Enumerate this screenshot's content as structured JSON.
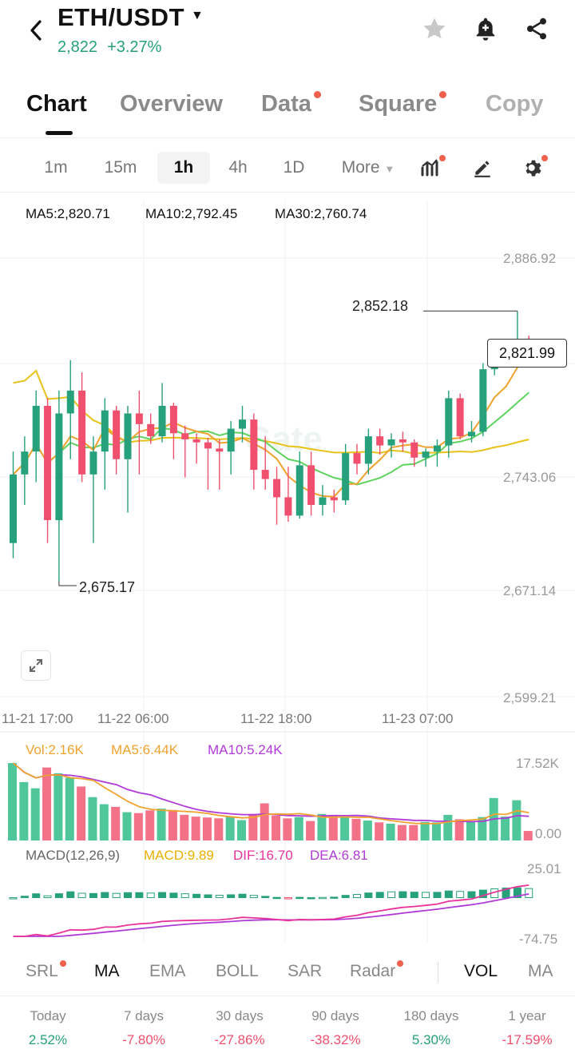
{
  "header": {
    "pair": "ETH/USDT",
    "price": "2,822",
    "change": "+3.27%",
    "up_color": "#26a17b",
    "down_color": "#f0506e",
    "icons": [
      "back-arrow-icon",
      "star-icon",
      "bell-icon",
      "share-icon"
    ]
  },
  "tabs": [
    "Chart",
    "Overview",
    "Data",
    "Square",
    "Copy"
  ],
  "active_tab": "Chart",
  "timeframes": [
    "1m",
    "15m",
    "1h",
    "4h",
    "1D",
    "More"
  ],
  "active_timeframe": "1h",
  "toolbar_icons": [
    "indicator-icon",
    "draw-pen-icon",
    "settings-gear-icon"
  ],
  "ma": {
    "ma5": "MA5:2,820.71",
    "ma10": "MA10:2,792.45",
    "ma30": "MA30:2,760.74",
    "ma5_color": "#f0a22e",
    "ma10_color": "#5fd35f",
    "ma30_color": "#e8c21a"
  },
  "price_axis": [
    "2,886.92",
    "2,743.06",
    "2,671.14",
    "2,599.21"
  ],
  "high_label": "2,852.18",
  "low_label": "2,675.17",
  "current_price": "2,821.99",
  "time_axis": [
    "11-21 17:00",
    "11-22 06:00",
    "11-22 18:00",
    "11-23 07:00"
  ],
  "watermark": "Gate",
  "volume": {
    "vol": "Vol:2.16K",
    "ma5": "MA5:6.44K",
    "ma10": "MA10:5.24K",
    "axis_top": "17.52K",
    "axis_bottom": "0.00"
  },
  "macd": {
    "title": "MACD(12,26,9)",
    "macd": "MACD:9.89",
    "dif": "DIF:16.70",
    "dea": "DEA:6.81",
    "axis_top": "25.01",
    "axis_bottom": "-74.75"
  },
  "indicators": [
    {
      "label": "SRL",
      "dot": true
    },
    {
      "label": "MA",
      "dot": false,
      "on": true
    },
    {
      "label": "EMA",
      "dot": false
    },
    {
      "label": "BOLL",
      "dot": false
    },
    {
      "label": "SAR",
      "dot": false
    },
    {
      "label": "Radar",
      "dot": true
    },
    {
      "label": "VOL",
      "dot": false,
      "on": true
    },
    {
      "label": "MA",
      "dot": false
    }
  ],
  "performance": [
    {
      "label": "Today",
      "value": "2.52%"
    },
    {
      "label": "7 days",
      "value": "-7.80%"
    },
    {
      "label": "30 days",
      "value": "-27.86%"
    },
    {
      "label": "90 days",
      "value": "-38.32%"
    },
    {
      "label": "180 days",
      "value": "5.30%"
    },
    {
      "label": "1 year",
      "value": "-17.59%"
    }
  ],
  "chart_data": {
    "type": "candlestick",
    "interval": "1h",
    "ylim": [
      2599.21,
      2886.92
    ],
    "candles": [
      {
        "o": 2700,
        "h": 2760,
        "l": 2690,
        "c": 2745
      },
      {
        "o": 2745,
        "h": 2770,
        "l": 2725,
        "c": 2760
      },
      {
        "o": 2760,
        "h": 2800,
        "l": 2740,
        "c": 2790
      },
      {
        "o": 2790,
        "h": 2795,
        "l": 2700,
        "c": 2715
      },
      {
        "o": 2715,
        "h": 2800,
        "l": 2675.17,
        "c": 2785
      },
      {
        "o": 2785,
        "h": 2820,
        "l": 2755,
        "c": 2800
      },
      {
        "o": 2800,
        "h": 2812,
        "l": 2740,
        "c": 2745
      },
      {
        "o": 2745,
        "h": 2770,
        "l": 2700,
        "c": 2760
      },
      {
        "o": 2760,
        "h": 2795,
        "l": 2735,
        "c": 2787
      },
      {
        "o": 2787,
        "h": 2790,
        "l": 2745,
        "c": 2755
      },
      {
        "o": 2755,
        "h": 2790,
        "l": 2720,
        "c": 2785
      },
      {
        "o": 2785,
        "h": 2800,
        "l": 2745,
        "c": 2778
      },
      {
        "o": 2778,
        "h": 2785,
        "l": 2765,
        "c": 2770
      },
      {
        "o": 2770,
        "h": 2805,
        "l": 2766,
        "c": 2790
      },
      {
        "o": 2790,
        "h": 2792,
        "l": 2755,
        "c": 2772
      },
      {
        "o": 2772,
        "h": 2777,
        "l": 2743,
        "c": 2768
      },
      {
        "o": 2768,
        "h": 2772,
        "l": 2752,
        "c": 2766
      },
      {
        "o": 2766,
        "h": 2769,
        "l": 2735,
        "c": 2762
      },
      {
        "o": 2762,
        "h": 2768,
        "l": 2735,
        "c": 2760
      },
      {
        "o": 2760,
        "h": 2780,
        "l": 2745,
        "c": 2775
      },
      {
        "o": 2775,
        "h": 2790,
        "l": 2766,
        "c": 2781
      },
      {
        "o": 2781,
        "h": 2785,
        "l": 2735,
        "c": 2748
      },
      {
        "o": 2748,
        "h": 2770,
        "l": 2735,
        "c": 2742
      },
      {
        "o": 2742,
        "h": 2750,
        "l": 2712,
        "c": 2730
      },
      {
        "o": 2730,
        "h": 2750,
        "l": 2714,
        "c": 2718
      },
      {
        "o": 2718,
        "h": 2760,
        "l": 2716,
        "c": 2751
      },
      {
        "o": 2751,
        "h": 2760,
        "l": 2718,
        "c": 2725
      },
      {
        "o": 2725,
        "h": 2738,
        "l": 2718,
        "c": 2730
      },
      {
        "o": 2730,
        "h": 2735,
        "l": 2720,
        "c": 2728
      },
      {
        "o": 2728,
        "h": 2765,
        "l": 2725,
        "c": 2759
      },
      {
        "o": 2759,
        "h": 2765,
        "l": 2745,
        "c": 2752
      },
      {
        "o": 2752,
        "h": 2775,
        "l": 2745,
        "c": 2770
      },
      {
        "o": 2770,
        "h": 2775,
        "l": 2758,
        "c": 2764
      },
      {
        "o": 2764,
        "h": 2772,
        "l": 2756,
        "c": 2768
      },
      {
        "o": 2768,
        "h": 2773,
        "l": 2760,
        "c": 2766
      },
      {
        "o": 2766,
        "h": 2768,
        "l": 2750,
        "c": 2756
      },
      {
        "o": 2756,
        "h": 2762,
        "l": 2750,
        "c": 2760
      },
      {
        "o": 2760,
        "h": 2768,
        "l": 2750,
        "c": 2764
      },
      {
        "o": 2764,
        "h": 2800,
        "l": 2756,
        "c": 2795
      },
      {
        "o": 2795,
        "h": 2798,
        "l": 2768,
        "c": 2770
      },
      {
        "o": 2770,
        "h": 2780,
        "l": 2766,
        "c": 2773
      },
      {
        "o": 2773,
        "h": 2818,
        "l": 2770,
        "c": 2814
      },
      {
        "o": 2814,
        "h": 2834,
        "l": 2810,
        "c": 2826
      },
      {
        "o": 2826,
        "h": 2834,
        "l": 2822,
        "c": 2830
      },
      {
        "o": 2830,
        "h": 2852.18,
        "l": 2826,
        "c": 2833
      },
      {
        "o": 2833,
        "h": 2836,
        "l": 2820,
        "c": 2822
      }
    ],
    "volume": [
      17.5,
      13.2,
      11.8,
      16.5,
      15.2,
      14.2,
      12.2,
      9.8,
      8.2,
      7.6,
      6.4,
      6.2,
      6.8,
      7.2,
      6.9,
      5.8,
      5.4,
      5.2,
      5.0,
      5.4,
      4.6,
      6.0,
      8.4,
      5.6,
      5.0,
      5.3,
      4.4,
      6.0,
      5.7,
      5.2,
      4.9,
      4.5,
      4.1,
      3.8,
      3.5,
      3.5,
      4.2,
      4.1,
      5.8,
      4.8,
      4.3,
      5.3,
      9.6,
      5.4,
      9.1,
      2.16
    ],
    "volume_ylim": [
      0,
      17.52
    ],
    "macd_ylim": [
      -74.75,
      25.01
    ]
  }
}
